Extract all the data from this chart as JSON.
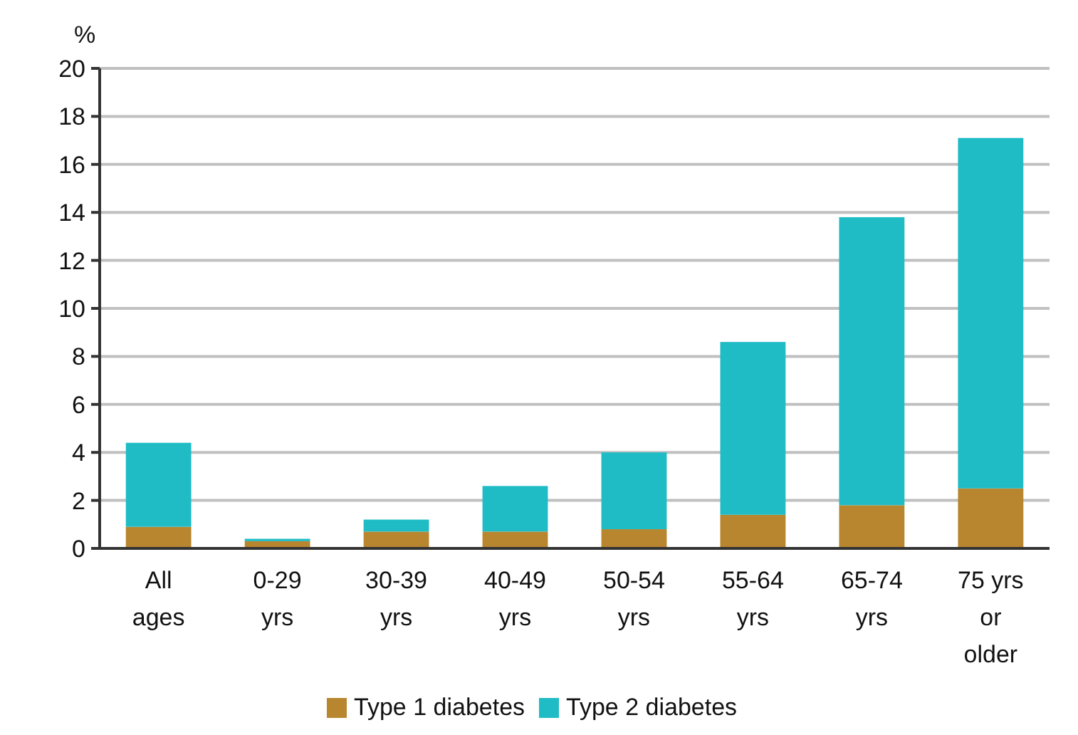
{
  "chart_data": {
    "type": "bar",
    "stacked": true,
    "ylabel": "%",
    "categories": [
      "All ages",
      "0-29 yrs",
      "30-39 yrs",
      "40-49 yrs",
      "50-54 yrs",
      "55-64 yrs",
      "65-74 yrs",
      "75 yrs or older"
    ],
    "series": [
      {
        "name": "Type 1 diabetes",
        "color": "#b8862f",
        "values": [
          0.9,
          0.3,
          0.7,
          0.7,
          0.8,
          1.4,
          1.8,
          2.5
        ]
      },
      {
        "name": "Type 2 diabetes",
        "color": "#1fbcc6",
        "values": [
          3.5,
          0.1,
          0.5,
          1.9,
          3.2,
          7.2,
          12.0,
          14.6
        ]
      }
    ],
    "ylim": [
      0,
      20
    ],
    "yticks": [
      0,
      2,
      4,
      6,
      8,
      10,
      12,
      14,
      16,
      18,
      20
    ],
    "grid": "y",
    "legend": "bottom"
  }
}
